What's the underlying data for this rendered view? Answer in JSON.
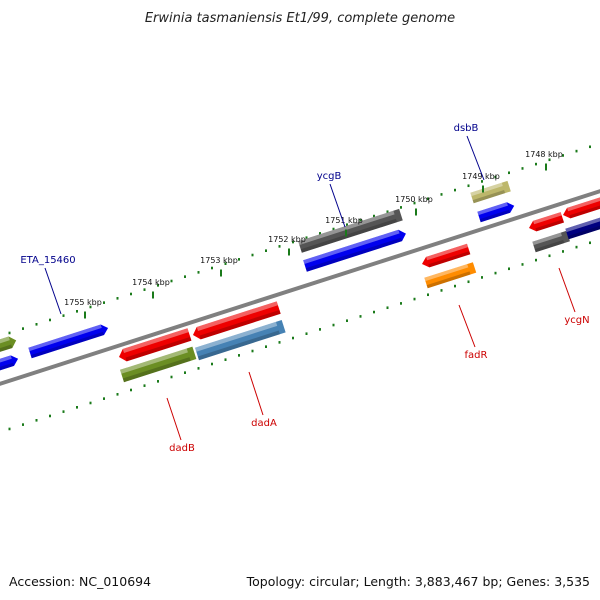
{
  "title": "Erwinia tasmaniensis Et1/99, complete genome",
  "footer": {
    "accession": "Accession: NC_010694",
    "summary": "Topology: circular; Length: 3,883,467 bp; Genes: 3,535"
  },
  "colors": {
    "backbone": "#808080",
    "tick": "#1a7a1a",
    "forward_label": "#00008b",
    "reverse_label": "#cc0000"
  },
  "ticks": [
    {
      "label": "1755 kbp"
    },
    {
      "label": "1754 kbp"
    },
    {
      "label": "1753 kbp"
    },
    {
      "label": "1752 kbp"
    },
    {
      "label": "1751 kbp"
    },
    {
      "label": "1750 kbp"
    },
    {
      "label": "1749 kbp"
    },
    {
      "label": "1748 kbp"
    }
  ],
  "labels": [
    {
      "text": "ETA_15460",
      "strand": "forward"
    },
    {
      "text": "ycgB",
      "strand": "forward"
    },
    {
      "text": "dsbB",
      "strand": "forward"
    },
    {
      "text": "dadB",
      "strand": "reverse"
    },
    {
      "text": "dadA",
      "strand": "reverse"
    },
    {
      "text": "fadR",
      "strand": "reverse"
    },
    {
      "text": "ycgN",
      "strand": "reverse"
    }
  ],
  "features": [
    {
      "color": "#6b8e23"
    },
    {
      "color": "#0000ee"
    },
    {
      "color": "#0000ee"
    },
    {
      "color": "#ee0000"
    },
    {
      "color": "#6b8e23"
    },
    {
      "color": "#ee0000"
    },
    {
      "color": "#4682b4"
    },
    {
      "color": "#555555"
    },
    {
      "color": "#0000ee"
    },
    {
      "color": "#bdb76b"
    },
    {
      "color": "#0000ee"
    },
    {
      "color": "#ee0000"
    },
    {
      "color": "#ff8c00"
    },
    {
      "color": "#ee0000"
    },
    {
      "color": "#555555"
    },
    {
      "color": "#ee0000"
    },
    {
      "color": "#000080"
    }
  ]
}
